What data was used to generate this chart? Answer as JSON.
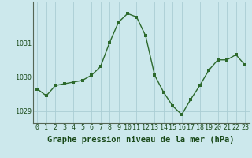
{
  "x": [
    0,
    1,
    2,
    3,
    4,
    5,
    6,
    7,
    8,
    9,
    10,
    11,
    12,
    13,
    14,
    15,
    16,
    17,
    18,
    19,
    20,
    21,
    22,
    23
  ],
  "y": [
    1029.65,
    1029.45,
    1029.75,
    1029.8,
    1029.85,
    1029.9,
    1030.05,
    1030.3,
    1031.0,
    1031.6,
    1031.85,
    1031.75,
    1031.2,
    1030.05,
    1029.55,
    1029.15,
    1028.9,
    1029.35,
    1029.75,
    1030.2,
    1030.5,
    1030.5,
    1030.65,
    1030.35
  ],
  "line_color": "#2d6a2d",
  "marker_color": "#2d6a2d",
  "background_color": "#cce8ec",
  "grid_color": "#aacdd4",
  "tick_label_color": "#1a4a1a",
  "xlabel": "Graphe pression niveau de la mer (hPa)",
  "ylim": [
    1028.65,
    1032.2
  ],
  "yticks": [
    1029,
    1030,
    1031
  ],
  "xticks": [
    0,
    1,
    2,
    3,
    4,
    5,
    6,
    7,
    8,
    9,
    10,
    11,
    12,
    13,
    14,
    15,
    16,
    17,
    18,
    19,
    20,
    21,
    22,
    23
  ],
  "xlabel_fontsize": 7.5,
  "tick_fontsize": 6,
  "line_width": 1.0,
  "marker_size": 2.5
}
